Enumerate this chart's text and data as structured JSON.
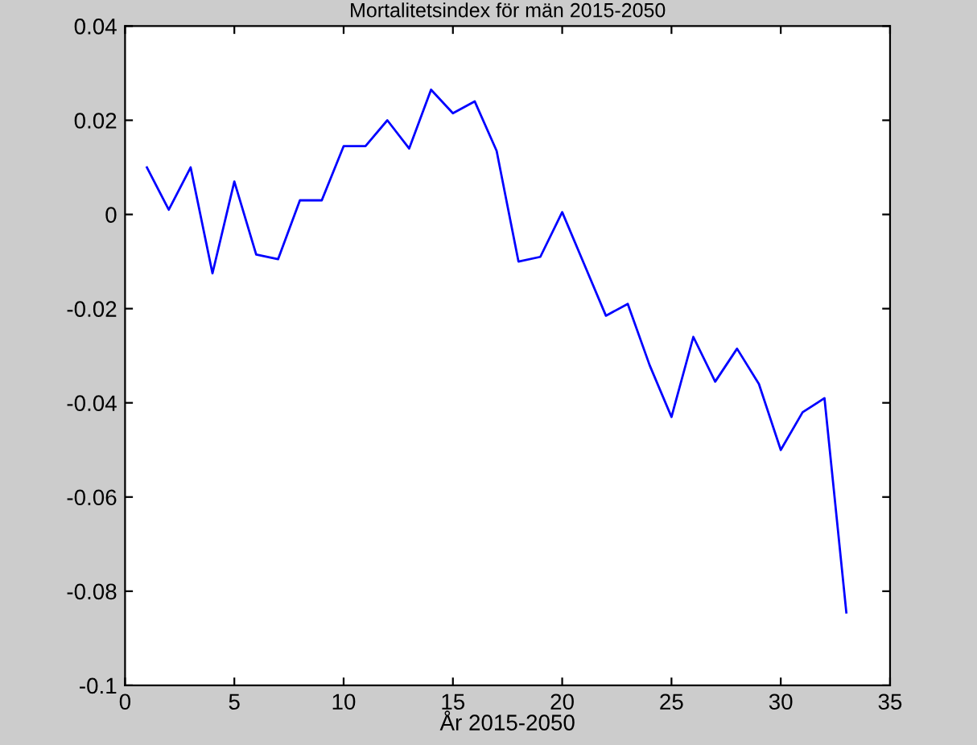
{
  "chart_data": {
    "type": "line",
    "title": "Mortalitetsindex för män 2015-2050",
    "xlabel": "År 2015-2050",
    "x": [
      1,
      2,
      3,
      4,
      5,
      6,
      7,
      8,
      9,
      10,
      11,
      12,
      13,
      14,
      15,
      16,
      17,
      18,
      19,
      20,
      21,
      22,
      23,
      24,
      25,
      26,
      27,
      28,
      29,
      30,
      31,
      32,
      33
    ],
    "series": [
      {
        "color": "#0000ff",
        "values": [
          0.01,
          0.001,
          0.01,
          -0.0125,
          0.007,
          -0.0085,
          -0.0095,
          0.003,
          0.003,
          0.0145,
          0.0145,
          0.02,
          0.014,
          0.0265,
          0.0215,
          0.024,
          0.0135,
          -0.01,
          -0.009,
          0.0005,
          -0.0105,
          -0.0215,
          -0.019,
          -0.032,
          -0.043,
          -0.026,
          -0.0355,
          -0.0285,
          -0.036,
          -0.05,
          -0.042,
          -0.039,
          -0.0845
        ]
      }
    ],
    "xlim": [
      0,
      35
    ],
    "xticks": [
      0,
      5,
      10,
      15,
      20,
      25,
      30,
      35
    ],
    "ylim": [
      -0.1,
      0.04
    ],
    "yticks": [
      {
        "value": -0.1,
        "label": "-0.1"
      },
      {
        "value": -0.08,
        "label": "-0.08"
      },
      {
        "value": -0.06,
        "label": "-0.06"
      },
      {
        "value": -0.04,
        "label": "-0.04"
      },
      {
        "value": -0.02,
        "label": "-0.02"
      },
      0,
      {
        "value": 0.02,
        "label": "0.02"
      },
      {
        "value": 0.04,
        "label": "0.04"
      }
    ],
    "grid": false,
    "legend": false
  }
}
